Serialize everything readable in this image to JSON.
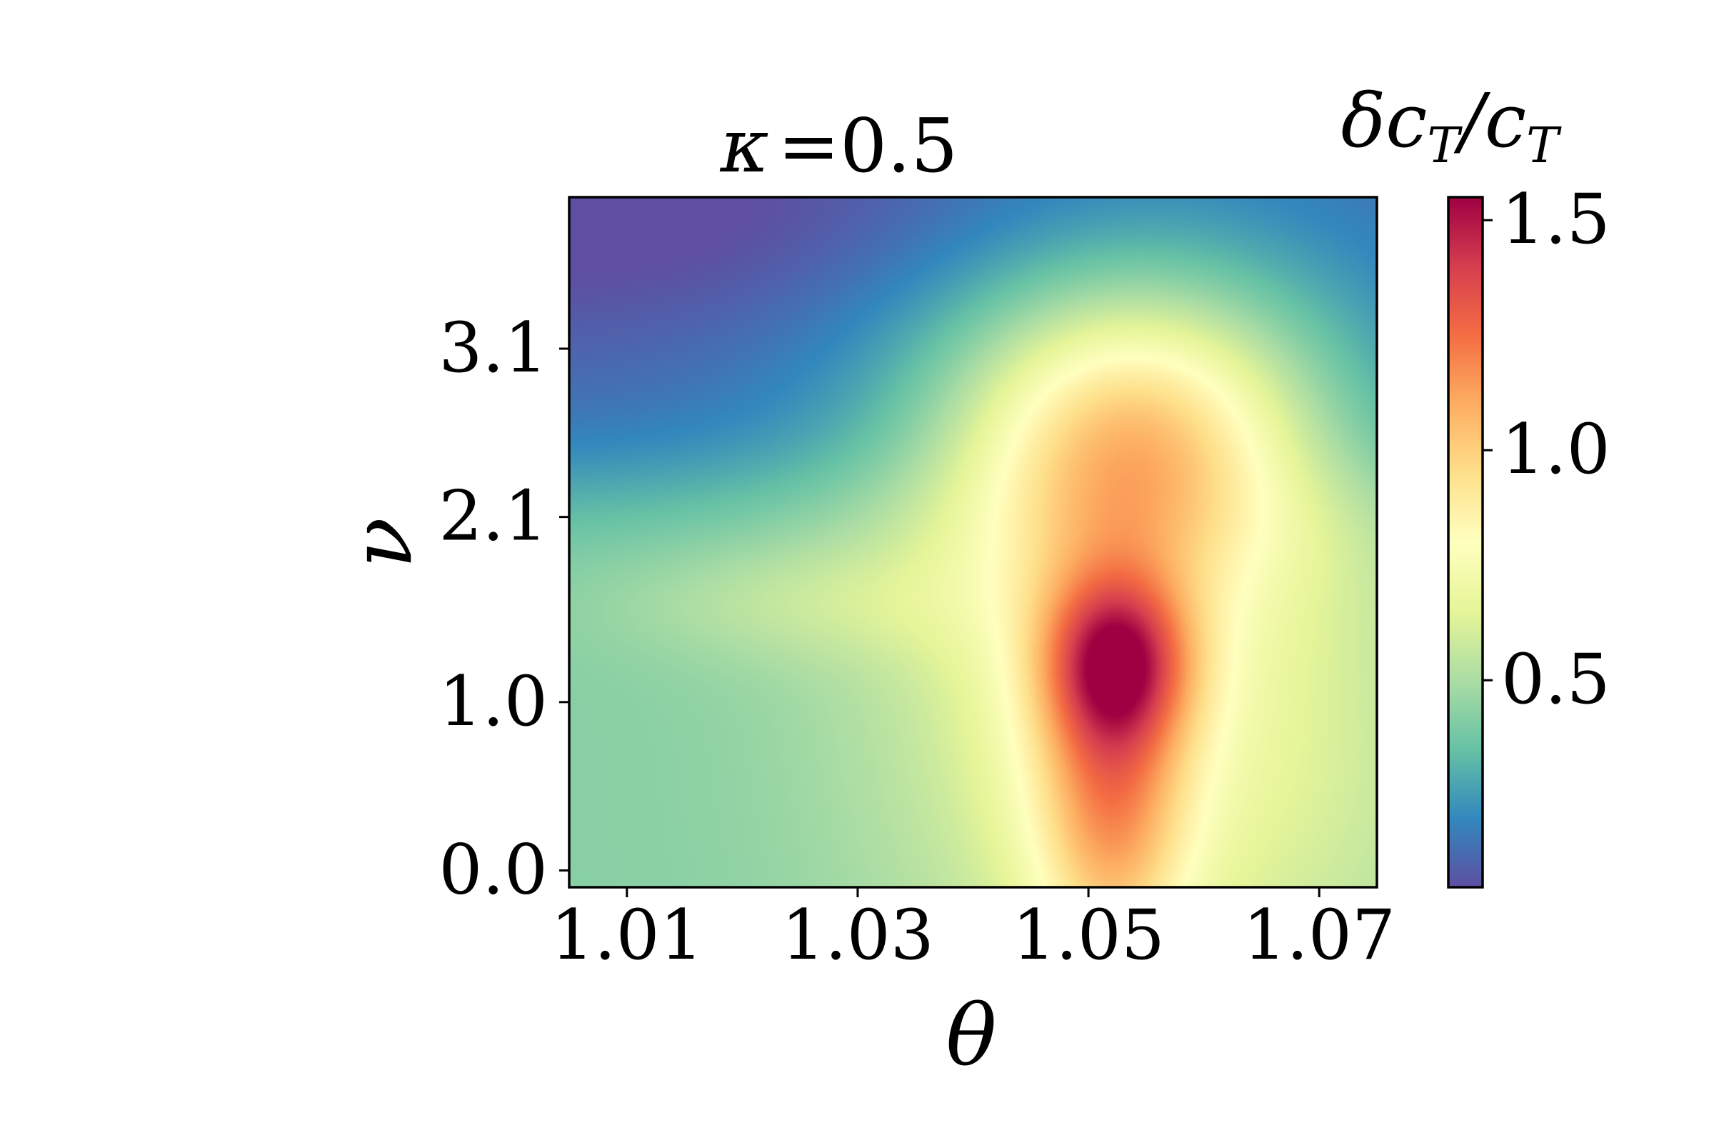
{
  "chart_data": {
    "type": "heatmap",
    "title_symbol": "κ",
    "title_value": "=0.5",
    "xlabel": "θ",
    "ylabel": "ν",
    "colorbar_label": "δc",
    "colorbar_label_sub": "T",
    "colorbar_label_sep": "/",
    "colorbar_label_den": "c",
    "colorbar_label_den_sub": "T",
    "xlim": [
      1.005,
      1.075
    ],
    "ylim": [
      -0.1,
      4.0
    ],
    "xticks": [
      1.01,
      1.03,
      1.05,
      1.07
    ],
    "xtick_labels": [
      "1.01",
      "1.03",
      "1.05",
      "1.07"
    ],
    "yticks": [
      0.0,
      1.0,
      2.1,
      3.1
    ],
    "ytick_labels": [
      "0.0",
      "1.0",
      "2.1",
      "3.1"
    ],
    "colorbar_range": [
      0.05,
      1.55
    ],
    "colorbar_ticks": [
      0.5,
      1.0,
      1.5
    ],
    "colorbar_tick_labels": [
      "0.5",
      "1.0",
      "1.5"
    ],
    "colormap": "Spectral_r",
    "colormap_stops": [
      "#5e4fa2",
      "#3288bd",
      "#66c2a5",
      "#abdda4",
      "#e6f598",
      "#ffffbf",
      "#fee08b",
      "#fdae61",
      "#f46d43",
      "#d53e4f",
      "#9e0142"
    ],
    "features": [
      {
        "kind": "background",
        "theta_center": 1.04,
        "nu_center": 1.0,
        "value": 0.45
      },
      {
        "kind": "peak",
        "theta_center": 1.052,
        "nu_center": 1.2,
        "value": 1.35
      },
      {
        "kind": "ridge",
        "theta_center": 1.052,
        "nu_range": [
          0.0,
          1.2
        ],
        "value": 1.2
      },
      {
        "kind": "plateau",
        "theta_center": 1.053,
        "nu_center": 2.6,
        "value": 0.85
      },
      {
        "kind": "low_region",
        "theta_center": 1.01,
        "nu_center": 3.8,
        "value": 0.08
      }
    ]
  }
}
